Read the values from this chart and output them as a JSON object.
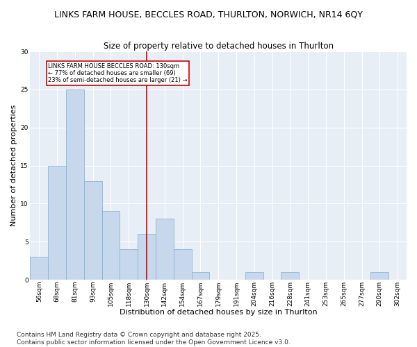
{
  "title_line1": "LINKS FARM HOUSE, BECCLES ROAD, THURLTON, NORWICH, NR14 6QY",
  "title_line2": "Size of property relative to detached houses in Thurlton",
  "xlabel": "Distribution of detached houses by size in Thurlton",
  "ylabel": "Number of detached properties",
  "categories": [
    "56sqm",
    "68sqm",
    "81sqm",
    "93sqm",
    "105sqm",
    "118sqm",
    "130sqm",
    "142sqm",
    "154sqm",
    "167sqm",
    "179sqm",
    "191sqm",
    "204sqm",
    "216sqm",
    "228sqm",
    "241sqm",
    "253sqm",
    "265sqm",
    "277sqm",
    "290sqm",
    "302sqm"
  ],
  "values": [
    3,
    15,
    25,
    13,
    9,
    4,
    6,
    8,
    4,
    1,
    0,
    0,
    1,
    0,
    1,
    0,
    0,
    0,
    0,
    1,
    0
  ],
  "bar_color": "#c8d8ec",
  "bar_edge_color": "#7aafd4",
  "highlight_index": 6,
  "highlight_line_color": "#cc0000",
  "annotation_text": "LINKS FARM HOUSE BECCLES ROAD: 130sqm\n← 77% of detached houses are smaller (69)\n23% of semi-detached houses are larger (21) →",
  "annotation_box_edge_color": "#cc0000",
  "ylim": [
    0,
    30
  ],
  "yticks": [
    0,
    5,
    10,
    15,
    20,
    25,
    30
  ],
  "footer_text": "Contains HM Land Registry data © Crown copyright and database right 2025.\nContains public sector information licensed under the Open Government Licence v3.0.",
  "bg_color": "#ffffff",
  "plot_bg_color": "#e8eef5",
  "grid_color": "#ffffff",
  "title_fontsize": 9,
  "subtitle_fontsize": 8.5,
  "axis_label_fontsize": 8,
  "tick_fontsize": 6.5,
  "footer_fontsize": 6.5
}
